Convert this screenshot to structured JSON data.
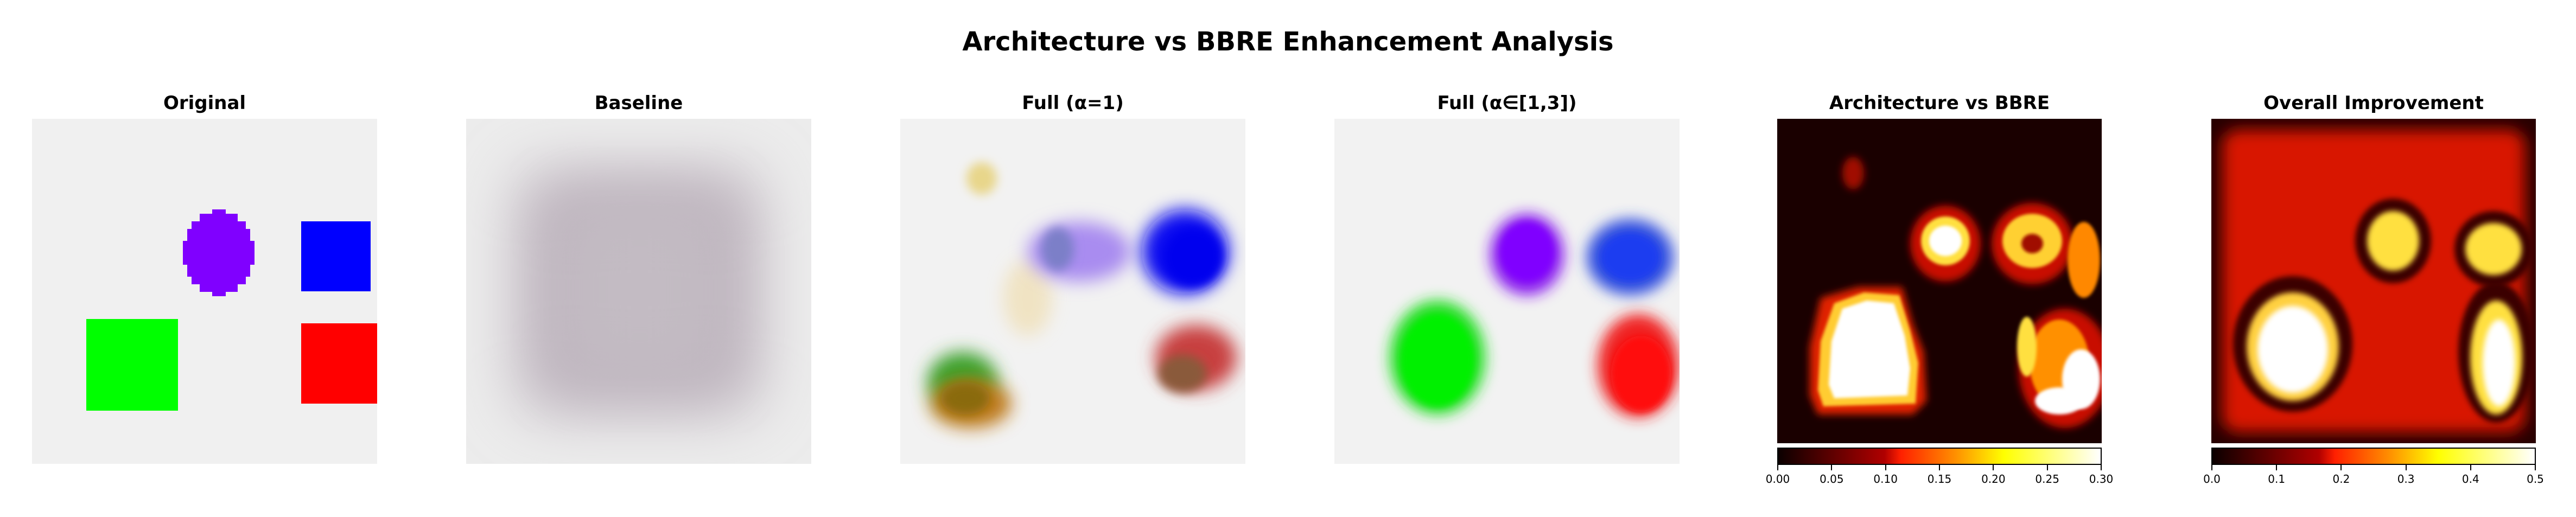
{
  "figure": {
    "suptitle": "Architecture vs BBRE Enhancement Analysis"
  },
  "panels": [
    {
      "id": "original",
      "title": "Original"
    },
    {
      "id": "baseline",
      "title": "Baseline"
    },
    {
      "id": "full-alpha-1",
      "title": "Full (α=1)"
    },
    {
      "id": "full-alpha-range",
      "title": "Full (α∈[1,3])"
    },
    {
      "id": "arch-vs-bbre",
      "title": "Architecture vs BBRE"
    },
    {
      "id": "overall-improvement",
      "title": "Overall Improvement"
    }
  ],
  "colorbars": {
    "arch_vs_bbre": {
      "colormap": "hot",
      "range": [
        0,
        0.3
      ],
      "ticks": [
        "0.00",
        "0.05",
        "0.10",
        "0.15",
        "0.20",
        "0.25",
        "0.30"
      ]
    },
    "overall_improvement": {
      "colormap": "hot",
      "range": [
        0,
        0.5
      ],
      "ticks": [
        "0.0",
        "0.1",
        "0.2",
        "0.3",
        "0.4",
        "0.5"
      ]
    }
  },
  "colors": {
    "background": "#f0f0f0",
    "purple": "#8000ff",
    "blue": "#0000ff",
    "green": "#00ff00",
    "red": "#ff0000",
    "heat_dark": "#1a0000"
  }
}
